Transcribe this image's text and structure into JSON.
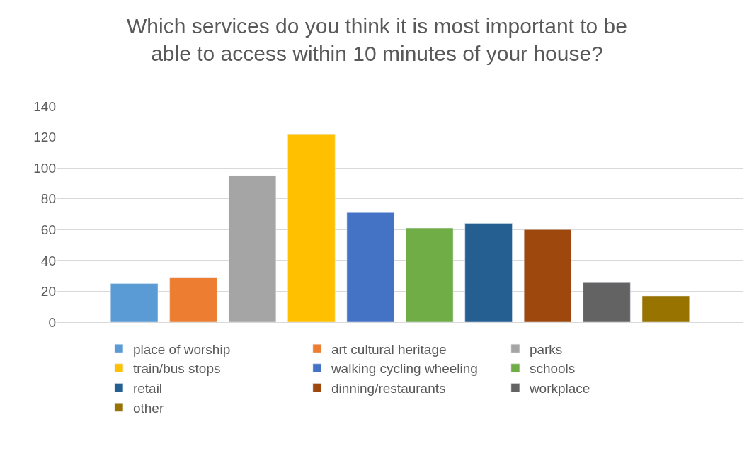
{
  "chart_data": {
    "type": "bar",
    "title": "Which services do you think it is most important to be able to access within 10 minutes of your house?",
    "categories": [
      null
    ],
    "series": [
      {
        "name": "place of worship",
        "color": "#5b9bd5",
        "values": [
          25
        ]
      },
      {
        "name": "art cultural heritage",
        "color": "#ed7d31",
        "values": [
          29
        ]
      },
      {
        "name": "parks",
        "color": "#a5a5a5",
        "values": [
          95
        ]
      },
      {
        "name": "train/bus stops",
        "color": "#ffc000",
        "values": [
          122
        ]
      },
      {
        "name": "walking cycling wheeling",
        "color": "#4472c4",
        "values": [
          71
        ]
      },
      {
        "name": "schools",
        "color": "#70ad47",
        "values": [
          61
        ]
      },
      {
        "name": "retail",
        "color": "#255e91",
        "values": [
          64
        ]
      },
      {
        "name": "dinning/restaurants",
        "color": "#9e480e",
        "values": [
          60
        ]
      },
      {
        "name": "workplace",
        "color": "#636363",
        "values": [
          26
        ]
      },
      {
        "name": "other",
        "color": "#997300",
        "values": [
          17
        ]
      }
    ],
    "ylim": [
      0,
      140
    ],
    "yticks": [
      0,
      20,
      40,
      60,
      80,
      100,
      120,
      140
    ],
    "grid": "y",
    "legend": "bottom"
  }
}
